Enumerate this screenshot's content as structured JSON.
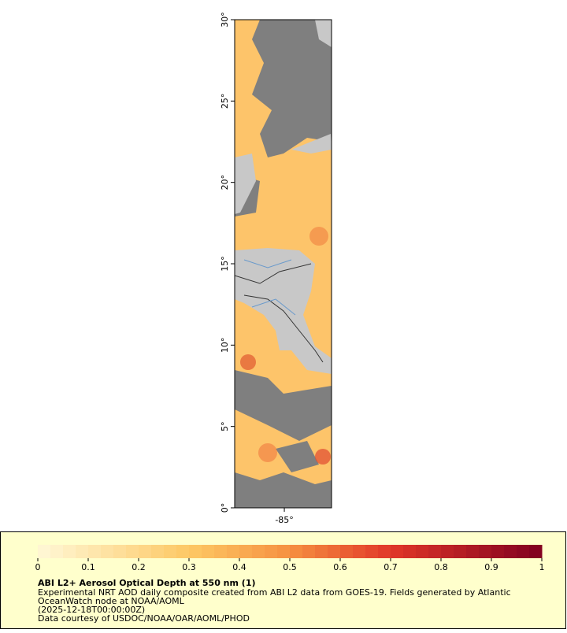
{
  "map": {
    "ylim": [
      0,
      30
    ],
    "yticks": [
      {
        "value": 0,
        "label": "0°"
      },
      {
        "value": 5,
        "label": "5°"
      },
      {
        "value": 10,
        "label": "10°"
      },
      {
        "value": 15,
        "label": "15°"
      },
      {
        "value": 20,
        "label": "20°"
      },
      {
        "value": 25,
        "label": "25°"
      },
      {
        "value": 30,
        "label": "30°"
      }
    ],
    "xlim": [
      -88.05,
      -82.1
    ],
    "xticks": [
      {
        "value": -85,
        "label": "-85°"
      }
    ]
  },
  "legend": {
    "title": "ABI L2+ Aerosol Optical Depth at 550 nm (1)",
    "lines": [
      "Experimental NRT AOD daily composite created from ABI L2 data from GOES-19. Fields generated by Atlantic",
      "OceanWatch node at NOAA/AOML",
      "(2025-12-18T00:00:00Z)",
      "Data courtesy of USDOC/NOAA/OAR/AOML/PHOD"
    ],
    "colorbar": {
      "lim": [
        0,
        1
      ],
      "ticks": [
        0,
        0.1,
        0.2,
        0.3,
        0.4,
        0.5,
        0.6,
        0.7,
        0.8,
        0.9,
        1
      ]
    }
  }
}
